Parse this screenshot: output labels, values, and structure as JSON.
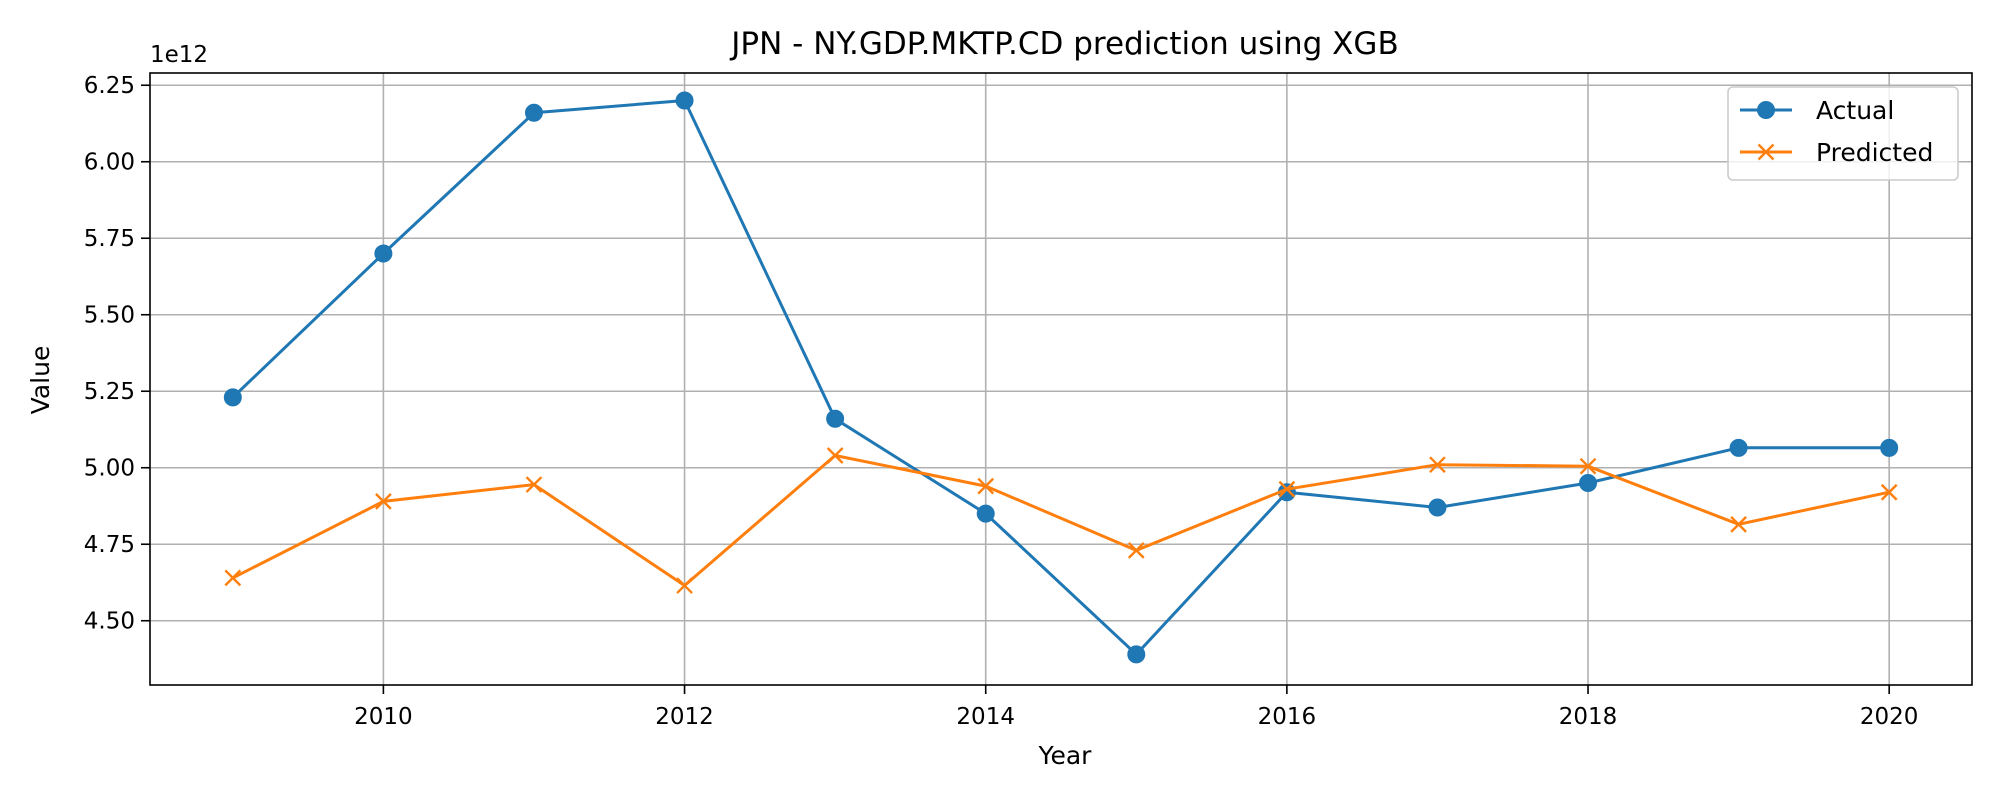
{
  "chart_data": {
    "type": "line",
    "title": "JPN - NY.GDP.MKTP.CD prediction using XGB",
    "xlabel": "Year",
    "ylabel": "Value",
    "y_offset_label": "1e12",
    "x": [
      2009,
      2010,
      2011,
      2012,
      2013,
      2014,
      2015,
      2016,
      2017,
      2018,
      2019,
      2020
    ],
    "x_ticks": [
      2010,
      2012,
      2014,
      2016,
      2018,
      2020
    ],
    "x_tick_labels": [
      "2010",
      "2012",
      "2014",
      "2016",
      "2018",
      "2020"
    ],
    "xlim": [
      2008.45,
      2020.55
    ],
    "y_ticks": [
      4.5,
      4.75,
      5.0,
      5.25,
      5.5,
      5.75,
      6.0,
      6.25
    ],
    "y_tick_labels": [
      "4.50",
      "4.75",
      "5.00",
      "5.25",
      "5.50",
      "5.75",
      "6.00",
      "6.25"
    ],
    "ylim": [
      4.29,
      6.29
    ],
    "y_scale_note": "values in units of 1e12",
    "grid": true,
    "legend_position": "top-right",
    "series": [
      {
        "name": "Actual",
        "color": "#1f77b4",
        "marker": "circle",
        "values": [
          5.23,
          5.7,
          6.16,
          6.2,
          5.16,
          4.85,
          4.39,
          4.92,
          4.87,
          4.95,
          5.065,
          5.065
        ]
      },
      {
        "name": "Predicted",
        "color": "#ff7f0e",
        "marker": "x",
        "values": [
          4.64,
          4.89,
          4.945,
          4.615,
          5.04,
          4.94,
          4.73,
          4.93,
          5.01,
          5.005,
          4.815,
          4.92
        ]
      }
    ]
  }
}
